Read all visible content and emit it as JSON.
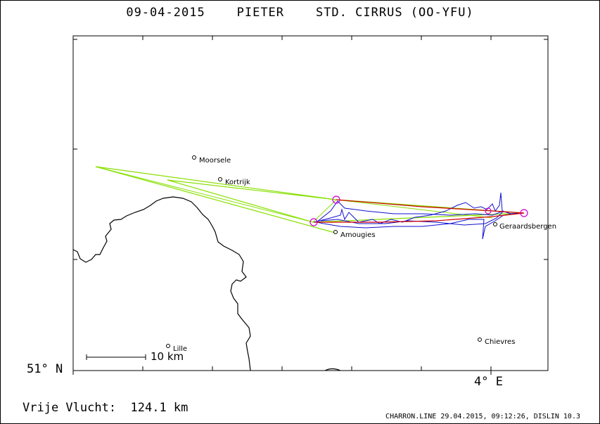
{
  "title": "09-04-2015    PIETER    STD. CIRRUS (OO-YFU)",
  "axes": {
    "lat_label": "51° N",
    "lon_label": "4° E"
  },
  "scale_bar": {
    "label": "10 km"
  },
  "distance_text": "Vrije Vlucht:  124.1 km",
  "footer": "CHARRON.LINE 29.04.2015, 09:12:26, DISLIN 10.3",
  "towns": [
    {
      "name": "Moorsele"
    },
    {
      "name": "Kortrijk"
    },
    {
      "name": "Amougies"
    },
    {
      "name": "Geraardsbergen"
    },
    {
      "name": "Lille"
    },
    {
      "name": "Chievres"
    }
  ],
  "colors": {
    "task_line": "#88e000",
    "track_flown": "#1010d0",
    "track_final": "#d00000",
    "turnpoint": "#d000d0",
    "border": "#000000"
  }
}
